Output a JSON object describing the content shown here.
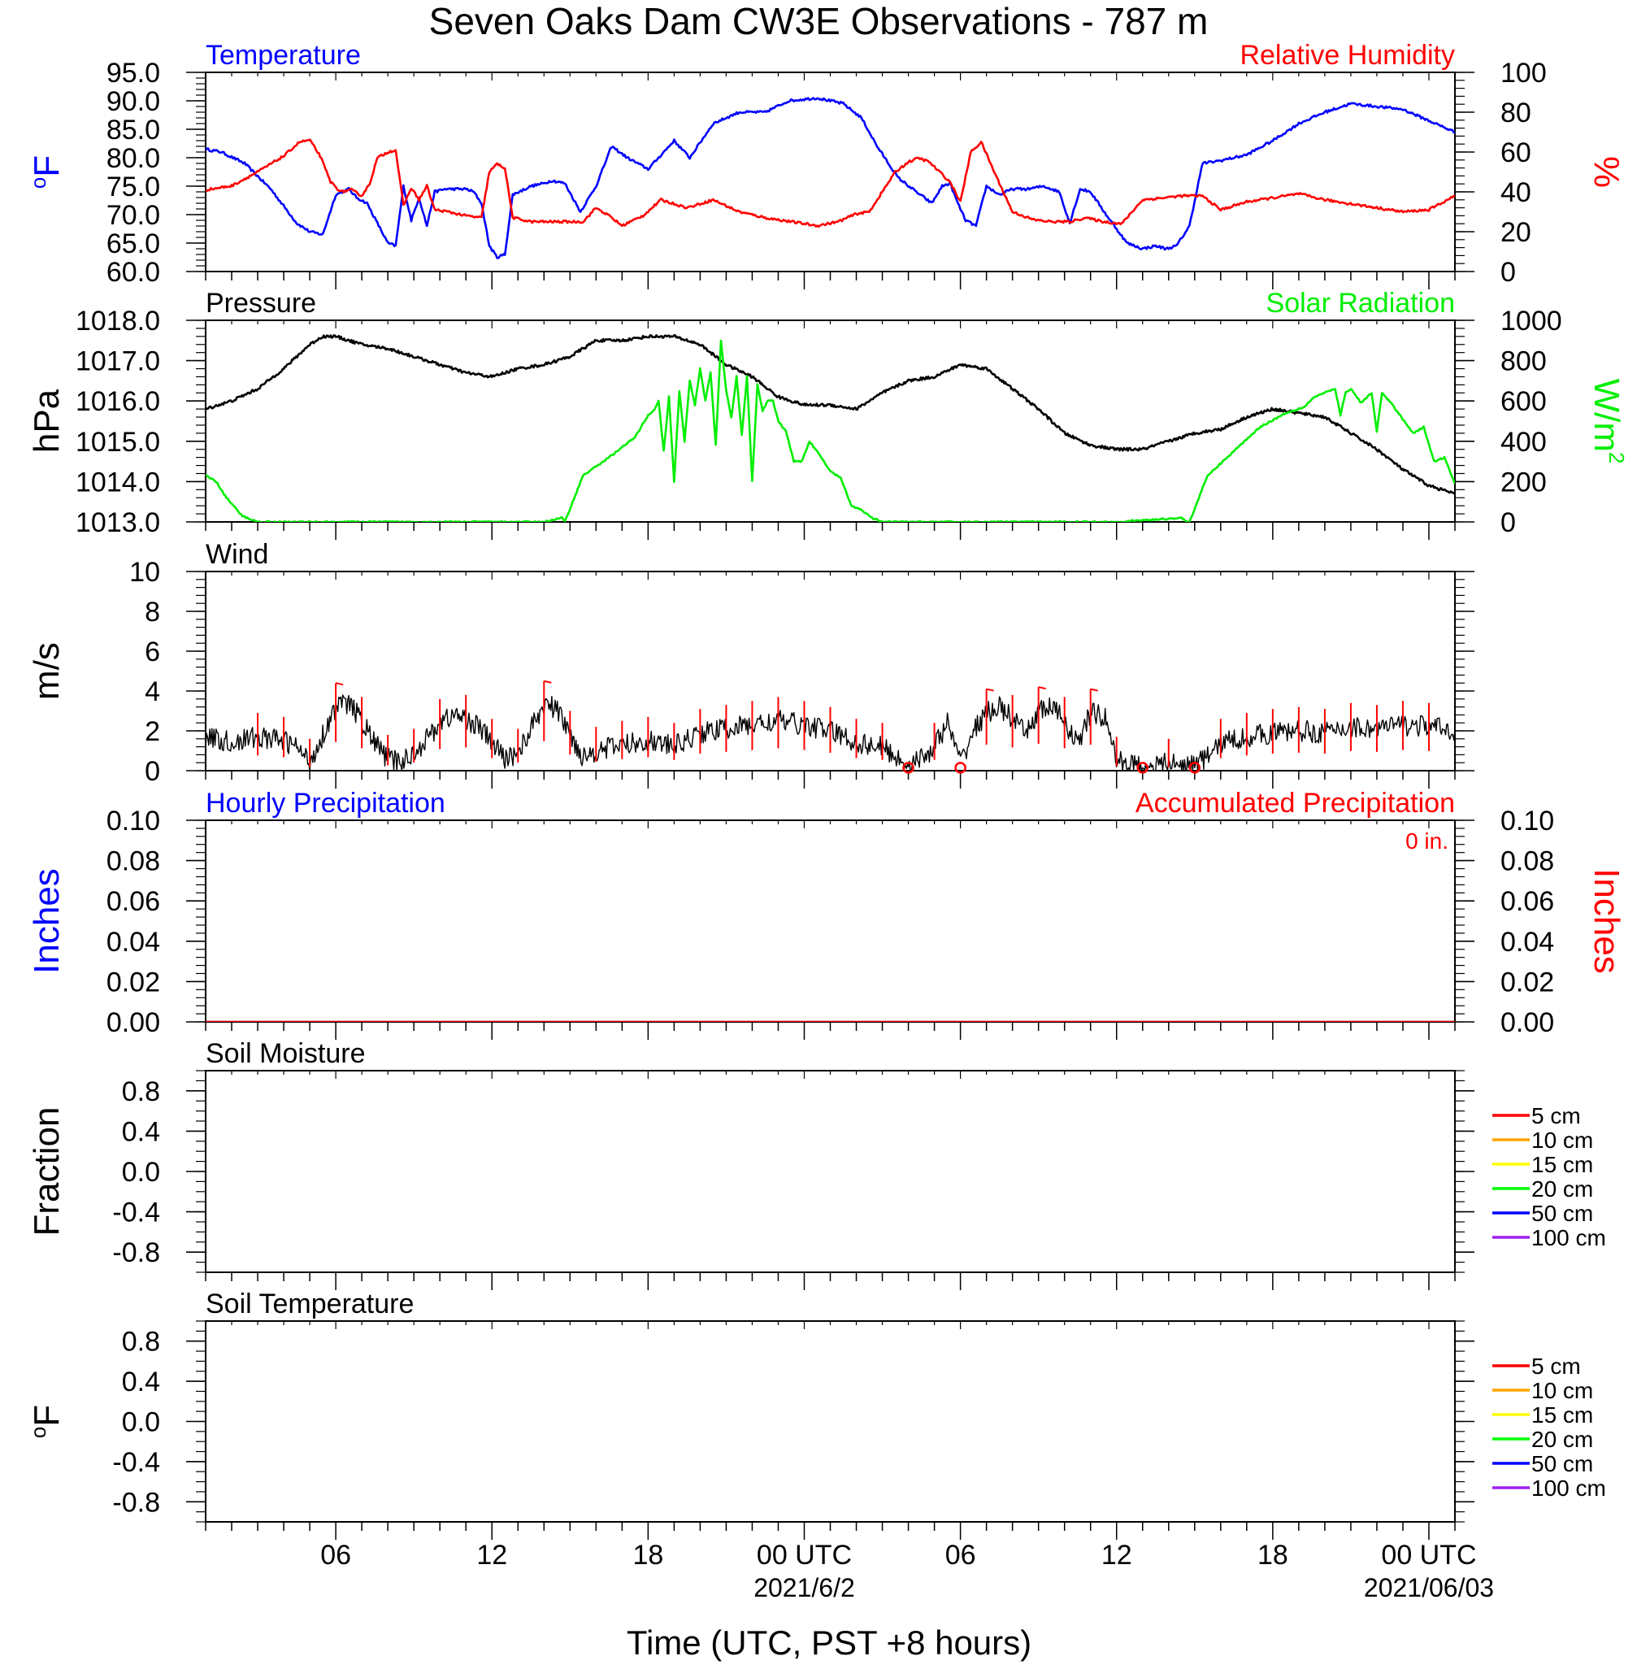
{
  "title": "Seven Oaks Dam CW3E Observations - 787 m",
  "xlabel": "Time (UTC, PST +8 hours)",
  "x_axis": {
    "range_hours": [
      0,
      48
    ],
    "ticks": [
      {
        "hour": 5,
        "label": "06"
      },
      {
        "hour": 11,
        "label": "12"
      },
      {
        "hour": 17,
        "label": "18"
      },
      {
        "hour": 23,
        "label": "00 UTC",
        "sublabel": "2021/6/2"
      },
      {
        "hour": 29,
        "label": "06"
      },
      {
        "hour": 35,
        "label": "12"
      },
      {
        "hour": 41,
        "label": "18"
      },
      {
        "hour": 47,
        "label": "00 UTC",
        "sublabel": "2021/06/03"
      }
    ]
  },
  "colors": {
    "temperature": "#0000ff",
    "humidity": "#ff0000",
    "pressure": "#000000",
    "solar": "#00ee00",
    "wind": "#000000",
    "barb": "#ff0000",
    "hourly_precip": "#0000ff",
    "accum_precip": "#ff0000"
  },
  "chart_data": [
    {
      "id": "temp_rh",
      "type": "line",
      "left_title": "Temperature",
      "right_title": "Relative Humidity",
      "ylabel_left": "°F",
      "ylabel_right": "%",
      "ylim_left": [
        60,
        95
      ],
      "ylim_right": [
        0,
        100
      ],
      "yticks_left": [
        "60.0",
        "65.0",
        "70.0",
        "75.0",
        "80.0",
        "85.0",
        "90.0",
        "95.0"
      ],
      "yticks_right": [
        "0",
        "20",
        "40",
        "60",
        "80",
        "100"
      ],
      "series": [
        {
          "name": "Temperature",
          "axis": "left",
          "x": [
            0,
            0.6,
            1.5,
            2.5,
            3.5,
            4.0,
            4.5,
            5.0,
            5.5,
            5.8,
            6.2,
            6.6,
            7.0,
            7.3,
            7.6,
            7.9,
            8.2,
            8.5,
            8.8,
            9.2,
            9.6,
            10.0,
            10.3,
            10.6,
            10.9,
            11.2,
            11.5,
            11.8,
            12.5,
            13.0,
            13.3,
            13.8,
            14.4,
            15.0,
            15.6,
            16.2,
            17.0,
            18.0,
            18.6,
            19.5,
            20.5,
            21.5,
            22.4,
            23.5,
            24.5,
            25.2,
            25.8,
            26.6,
            27.3,
            27.9,
            28.3,
            28.6,
            28.9,
            29.2,
            29.6,
            30.0,
            30.5,
            31.0,
            31.6,
            32.2,
            32.8,
            33.2,
            33.6,
            34.0,
            34.6,
            35.4,
            36.0,
            36.5,
            36.9,
            37.3,
            37.8,
            38.3,
            39.0,
            40.0,
            41.0,
            42.0,
            43.0,
            44.0,
            45.0,
            46.0,
            47.0,
            48.0
          ],
          "values": [
            81.5,
            81,
            79,
            74.5,
            68.5,
            67,
            66.5,
            73.5,
            74.5,
            73,
            72,
            68.5,
            65,
            64.5,
            75,
            69,
            73,
            68,
            74,
            74.5,
            74.5,
            74.5,
            74,
            72,
            64.5,
            62.5,
            63,
            73.5,
            75,
            75.5,
            76,
            75.5,
            70.5,
            75,
            82,
            80,
            78,
            83,
            80,
            86,
            88,
            88,
            90,
            90.5,
            89.5,
            87,
            82,
            76.5,
            74,
            72,
            75,
            75.5,
            72,
            69,
            68,
            75,
            73.5,
            74.5,
            74.5,
            75,
            74,
            68.5,
            74.5,
            74,
            70,
            65,
            64,
            64.5,
            64,
            64.5,
            68,
            79,
            79.5,
            80.5,
            83,
            86,
            88,
            89.5,
            89,
            88.5,
            86.5,
            84.5
          ]
        },
        {
          "name": "Relative Humidity",
          "axis": "right",
          "x": [
            0,
            1.0,
            2.0,
            3.0,
            3.6,
            4.0,
            4.4,
            4.8,
            5.2,
            5.6,
            6.0,
            6.3,
            6.6,
            7.0,
            7.3,
            7.6,
            7.9,
            8.2,
            8.5,
            8.8,
            9.3,
            10.0,
            10.6,
            10.9,
            11.2,
            11.5,
            11.8,
            12.5,
            13.5,
            14.5,
            15.0,
            15.5,
            16.0,
            16.8,
            17.5,
            18.5,
            19.5,
            20.5,
            21.5,
            22.5,
            23.5,
            24.3,
            25.0,
            25.5,
            26.0,
            26.5,
            27.0,
            27.4,
            27.8,
            28.2,
            28.6,
            29.0,
            29.4,
            29.8,
            30.3,
            31.0,
            31.8,
            32.5,
            33.2,
            33.8,
            34.5,
            35.2,
            36.0,
            36.8,
            37.5,
            38.3,
            39.0,
            40.0,
            41.0,
            42.0,
            43.0,
            44.0,
            45.0,
            46.0,
            47.0,
            48.0
          ],
          "values": [
            41,
            43,
            50,
            58,
            65,
            66,
            58,
            45,
            40,
            41,
            38,
            44,
            57,
            60,
            61,
            33,
            42,
            36,
            43,
            31,
            30,
            28,
            27,
            50,
            54,
            52,
            27,
            25,
            25,
            25,
            32,
            28,
            23,
            28,
            36,
            32,
            36,
            30,
            27,
            25,
            23,
            25,
            29,
            30,
            40,
            50,
            55,
            57,
            55,
            50,
            45,
            35,
            60,
            65,
            50,
            30,
            26,
            25,
            25,
            27,
            25,
            24,
            36,
            37,
            38,
            38,
            31,
            35,
            37,
            39,
            36,
            34,
            32,
            30,
            31,
            38
          ]
        }
      ]
    },
    {
      "id": "press_solar",
      "type": "line",
      "left_title": "Pressure",
      "right_title": "Solar Radiation",
      "ylabel_left": "hPa",
      "ylabel_right": "W/m²",
      "ylim_left": [
        1013,
        1018
      ],
      "ylim_right": [
        0,
        1000
      ],
      "yticks_left": [
        "1013.0",
        "1014.0",
        "1015.0",
        "1016.0",
        "1017.0",
        "1018.0"
      ],
      "yticks_right": [
        "0",
        "200",
        "400",
        "600",
        "800",
        "1000"
      ],
      "series": [
        {
          "name": "Pressure",
          "axis": "left",
          "x": [
            0,
            1.0,
            2.0,
            3.0,
            4.0,
            4.5,
            5.0,
            6.0,
            7.0,
            8.0,
            9.0,
            10.0,
            11.0,
            12.0,
            13.0,
            14.0,
            14.5,
            15.0,
            16.0,
            17.0,
            18.0,
            19.0,
            20.0,
            21.0,
            22.0,
            23.0,
            24.0,
            25.0,
            26.0,
            27.0,
            28.0,
            29.0,
            30.0,
            31.0,
            32.0,
            33.0,
            34.0,
            35.0,
            36.0,
            37.0,
            38.0,
            39.0,
            40.0,
            41.0,
            42.0,
            43.0,
            44.0,
            45.0,
            46.0,
            47.0,
            48.0
          ],
          "values": [
            1015.8,
            1016.0,
            1016.3,
            1016.8,
            1017.4,
            1017.6,
            1017.6,
            1017.4,
            1017.3,
            1017.1,
            1016.9,
            1016.7,
            1016.6,
            1016.8,
            1016.9,
            1017.1,
            1017.3,
            1017.5,
            1017.5,
            1017.6,
            1017.6,
            1017.4,
            1016.9,
            1016.6,
            1016.1,
            1015.9,
            1015.9,
            1015.8,
            1016.2,
            1016.5,
            1016.6,
            1016.9,
            1016.8,
            1016.3,
            1015.8,
            1015.2,
            1014.9,
            1014.8,
            1014.8,
            1015.0,
            1015.2,
            1015.3,
            1015.6,
            1015.8,
            1015.7,
            1015.6,
            1015.2,
            1014.8,
            1014.3,
            1013.9,
            1013.7
          ]
        },
        {
          "name": "Solar Radiation",
          "axis": "right",
          "x": [
            0,
            0.4,
            0.8,
            1.2,
            1.4,
            2.0,
            5.0,
            10.0,
            13.0,
            13.7,
            13.8,
            14.5,
            15.5,
            16.5,
            17.0,
            17.2,
            17.4,
            17.6,
            17.8,
            18.0,
            18.2,
            18.4,
            18.6,
            18.8,
            19.0,
            19.2,
            19.4,
            19.6,
            19.8,
            20.0,
            20.2,
            20.4,
            20.6,
            20.8,
            21.0,
            21.2,
            21.4,
            21.6,
            21.8,
            22.0,
            22.3,
            22.6,
            22.9,
            23.2,
            23.6,
            24.0,
            24.4,
            24.8,
            25.2,
            25.6,
            26.0,
            30.0,
            35.0,
            37.5,
            37.7,
            37.8,
            38.5,
            39.5,
            40.5,
            41.5,
            42.2,
            42.6,
            43.0,
            43.4,
            43.6,
            43.8,
            44.0,
            44.4,
            44.8,
            45.0,
            45.2,
            45.6,
            46.0,
            46.4,
            46.8,
            47.2,
            47.6,
            48.0
          ],
          "values": [
            230,
            200,
            120,
            60,
            30,
            0,
            0,
            0,
            0,
            20,
            0,
            230,
            320,
            420,
            530,
            550,
            600,
            350,
            620,
            200,
            650,
            400,
            700,
            580,
            760,
            600,
            740,
            380,
            900,
            650,
            520,
            720,
            430,
            720,
            200,
            680,
            550,
            600,
            600,
            500,
            450,
            300,
            300,
            400,
            330,
            250,
            220,
            80,
            60,
            20,
            0,
            0,
            0,
            20,
            0,
            0,
            230,
            350,
            470,
            540,
            570,
            620,
            640,
            660,
            530,
            640,
            660,
            590,
            640,
            450,
            640,
            580,
            510,
            440,
            470,
            300,
            320,
            190
          ]
        }
      ]
    },
    {
      "id": "wind",
      "type": "line",
      "left_title": "Wind",
      "ylabel_left": "m/s",
      "ylim_left": [
        0,
        10
      ],
      "yticks_left": [
        "0",
        "2",
        "4",
        "6",
        "8",
        "10"
      ],
      "series": [
        {
          "name": "Wind",
          "axis": "left",
          "x": [
            0,
            1.0,
            2.0,
            3.0,
            3.5,
            4.0,
            4.5,
            5.0,
            5.5,
            6.0,
            6.5,
            7.0,
            7.5,
            8.0,
            8.5,
            9.0,
            9.5,
            10.0,
            10.5,
            11.0,
            11.5,
            12.0,
            12.5,
            13.0,
            13.3,
            13.6,
            14.0,
            14.5,
            15.0,
            16.0,
            17.0,
            18.0,
            19.0,
            20.0,
            21.0,
            22.0,
            23.0,
            24.0,
            25.0,
            26.0,
            26.5,
            27.0,
            27.5,
            28.0,
            28.5,
            29.0,
            29.5,
            30.0,
            30.5,
            31.0,
            31.5,
            32.0,
            32.5,
            33.0,
            33.5,
            34.0,
            34.3,
            34.6,
            35.0,
            35.5,
            36.0,
            36.5,
            37.0,
            37.5,
            38.0,
            38.5,
            39.0,
            40.0,
            41.0,
            42.0,
            43.0,
            44.0,
            45.0,
            46.0,
            47.0,
            48.0
          ],
          "values": [
            1.7,
            1.4,
            1.7,
            1.5,
            1.2,
            0.4,
            1.8,
            3.2,
            3.4,
            2.5,
            1.4,
            0.6,
            0.4,
            0.9,
            1.6,
            2.4,
            2.8,
            2.6,
            2.2,
            1.4,
            0.6,
            0.9,
            2.1,
            3.3,
            3.2,
            2.9,
            1.8,
            0.7,
            1.0,
            1.3,
            1.5,
            1.2,
            1.9,
            2.1,
            2.3,
            2.5,
            2.3,
            2.0,
            1.4,
            1.2,
            0.7,
            0.3,
            0.6,
            1.2,
            2.4,
            0.4,
            2.0,
            2.9,
            3.2,
            2.6,
            1.8,
            3.0,
            3.2,
            2.5,
            1.3,
            2.9,
            2.8,
            2.6,
            0.5,
            0.3,
            0.3,
            0.2,
            0.4,
            0.2,
            0.3,
            0.7,
            1.4,
            1.7,
            1.9,
            2.0,
            1.9,
            2.2,
            2.1,
            2.3,
            2.2,
            2.0
          ]
        }
      ]
    },
    {
      "id": "precip",
      "type": "line",
      "left_title": "Hourly Precipitation",
      "right_title": "Accumulated Precipitation",
      "annotation": "0 in.",
      "ylabel_left": "Inches",
      "ylabel_right": "Inches",
      "ylim_left": [
        0,
        0.1
      ],
      "ylim_right": [
        0,
        0.1
      ],
      "yticks_left": [
        "0.00",
        "0.02",
        "0.04",
        "0.06",
        "0.08",
        "0.10"
      ],
      "yticks_right": [
        "0.00",
        "0.02",
        "0.04",
        "0.06",
        "0.08",
        "0.10"
      ],
      "series": [
        {
          "name": "Hourly Precipitation",
          "axis": "left",
          "x": [
            0,
            48
          ],
          "values": [
            0,
            0
          ]
        },
        {
          "name": "Accumulated Precipitation",
          "axis": "right",
          "x": [
            0,
            48
          ],
          "values": [
            0,
            0
          ]
        }
      ]
    },
    {
      "id": "soil_moisture",
      "type": "line",
      "left_title": "Soil Moisture",
      "ylabel_left": "Fraction",
      "ylim_left": [
        -1,
        1
      ],
      "yticks_left": [
        "-0.8",
        "-0.4",
        "0.0",
        "0.4",
        "0.8"
      ],
      "legend": [
        {
          "label": "5 cm",
          "color": "#ff0000"
        },
        {
          "label": "10 cm",
          "color": "#ffa500"
        },
        {
          "label": "15 cm",
          "color": "#ffff00"
        },
        {
          "label": "20 cm",
          "color": "#00ff00"
        },
        {
          "label": "50 cm",
          "color": "#0000ff"
        },
        {
          "label": "100 cm",
          "color": "#a020f0"
        }
      ],
      "series": []
    },
    {
      "id": "soil_temperature",
      "type": "line",
      "left_title": "Soil Temperature",
      "ylabel_left": "°F",
      "ylim_left": [
        -1,
        1
      ],
      "yticks_left": [
        "-0.8",
        "-0.4",
        "0.0",
        "0.4",
        "0.8"
      ],
      "legend": [
        {
          "label": "5 cm",
          "color": "#ff0000"
        },
        {
          "label": "10 cm",
          "color": "#ffa500"
        },
        {
          "label": "15 cm",
          "color": "#ffff00"
        },
        {
          "label": "20 cm",
          "color": "#00ff00"
        },
        {
          "label": "50 cm",
          "color": "#0000ff"
        },
        {
          "label": "100 cm",
          "color": "#a020f0"
        }
      ],
      "series": []
    }
  ]
}
